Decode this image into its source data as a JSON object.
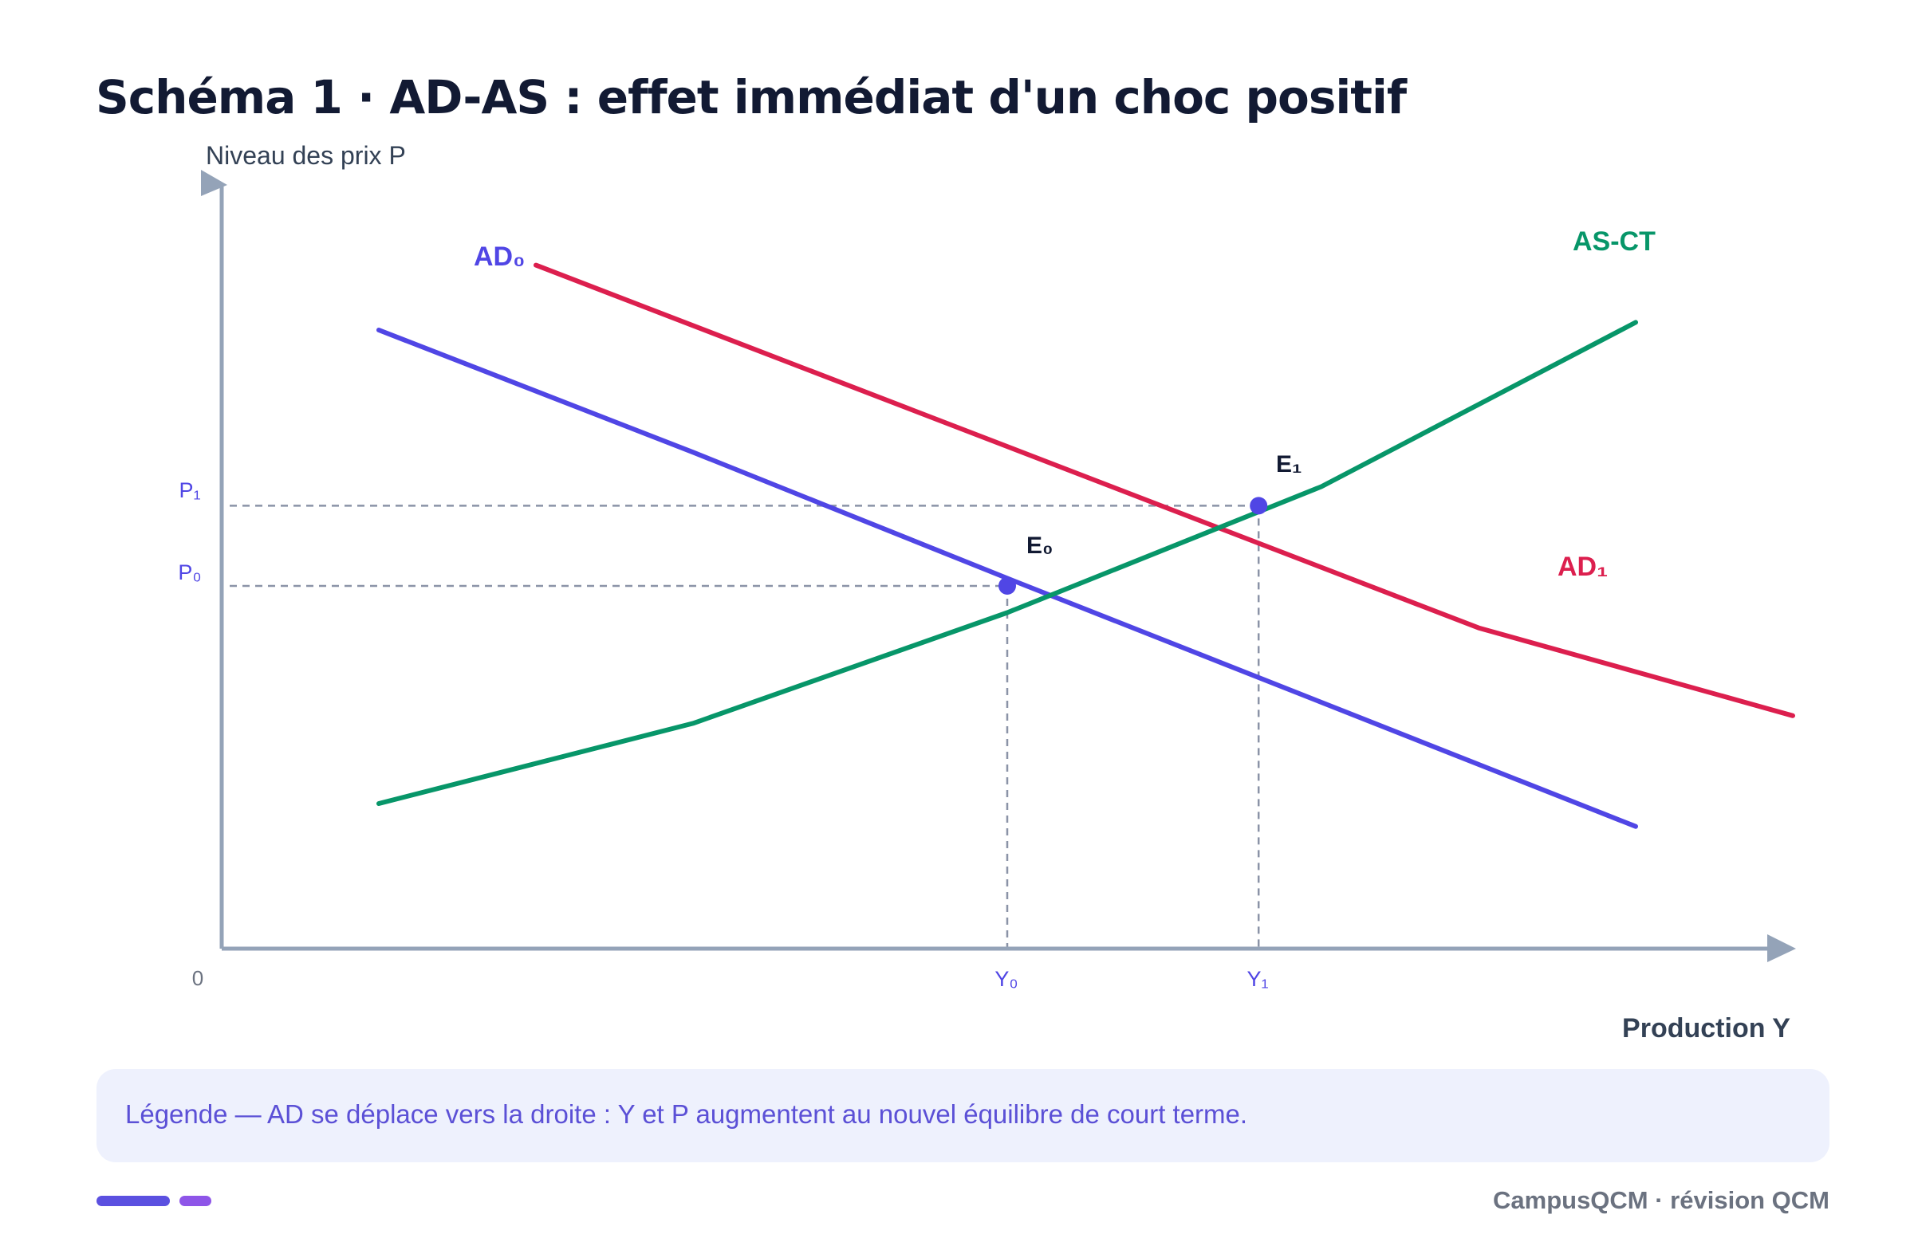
{
  "title": "Schéma 1 · AD-AS : effet immédiat d'un choc positif",
  "chart_data": {
    "type": "line",
    "xlabel": "Production Y",
    "ylabel": "Niveau des prix P",
    "origin_label": "0",
    "x_ticks": [
      "Y₀",
      "Y₁"
    ],
    "y_ticks": [
      "P₀",
      "P₁"
    ],
    "series": [
      {
        "name": "AD₀",
        "color": "#5046e5",
        "points": [
          [
            200,
            810
          ],
          [
            600,
            650
          ],
          [
            1000,
            485
          ],
          [
            1800,
            160
          ]
        ]
      },
      {
        "name": "AD₁",
        "color": "#dc1f4e",
        "points": [
          [
            400,
            895
          ],
          [
            1600,
            420
          ],
          [
            2000,
            305
          ]
        ]
      },
      {
        "name": "AS-CT",
        "color": "#079669",
        "points": [
          [
            200,
            190
          ],
          [
            600,
            295
          ],
          [
            1000,
            440
          ],
          [
            1400,
            605
          ],
          [
            1800,
            820
          ]
        ]
      }
    ],
    "equilibria": [
      {
        "name": "E₀",
        "x": 1000,
        "y": 475
      },
      {
        "name": "E₁",
        "x": 1320,
        "y": 580
      }
    ],
    "annotation": "AD se déplace vers la droite : Y et P augmentent au nouvel équilibre de court terme.",
    "xlim": [
      0,
      2000
    ],
    "ylim": [
      0,
      1000
    ]
  },
  "legend": {
    "text": "Légende — AD se déplace vers la droite : Y et P augmentent au nouvel équilibre de court terme."
  },
  "footer": "CampusQCM · révision QCM",
  "colors": {
    "axis": "#94a3b8",
    "guide": "#8b93a7",
    "tick_label": "#5046e5",
    "title": "#121a33"
  }
}
